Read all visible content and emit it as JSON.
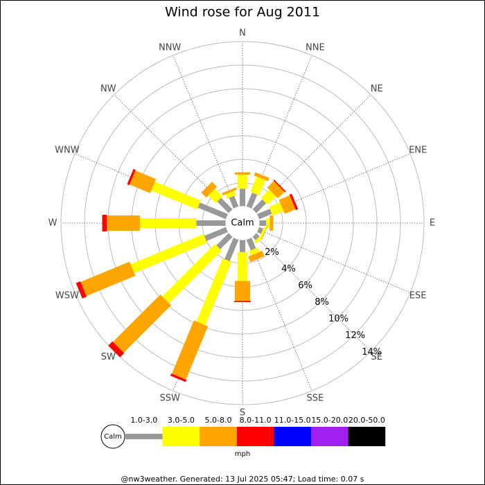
{
  "chart_data": {
    "type": "windrose",
    "title": "Wind rose for Aug 2011",
    "directions": [
      "N",
      "NNE",
      "NE",
      "ENE",
      "E",
      "ESE",
      "SE",
      "SSE",
      "S",
      "SSW",
      "SW",
      "WSW",
      "W",
      "WNW",
      "NW",
      "NNW"
    ],
    "calm_label": "Calm",
    "unit": "mph",
    "rlim": [
      0,
      14
    ],
    "rticks": [
      {
        "value": 2,
        "label": "2%"
      },
      {
        "value": 4,
        "label": "4%"
      },
      {
        "value": 6,
        "label": "6%"
      },
      {
        "value": 8,
        "label": "8%"
      },
      {
        "value": 10,
        "label": "10%"
      },
      {
        "value": 12,
        "label": "12%"
      },
      {
        "value": 14,
        "label": "14%"
      }
    ],
    "series": [
      {
        "name": "1.0-3.0",
        "color": "#999999",
        "values": [
          1.5,
          1.3,
          1.2,
          1.2,
          0.6,
          0.4,
          0.4,
          1.0,
          1.05,
          2.0,
          1.5,
          2.0,
          2.5,
          2.6,
          1.4,
          1.0
        ]
      },
      {
        "name": "3.0-5.0",
        "color": "#ffff00",
        "values": [
          1.2,
          1.4,
          1.0,
          1.0,
          0.3,
          0.2,
          0.25,
          0.4,
          2.45,
          5.8,
          6.3,
          6.7,
          4.8,
          4.2,
          0.9,
          0.4
        ]
      },
      {
        "name": "5.0-8.0",
        "color": "#ffa500",
        "values": [
          0.2,
          0.3,
          0.8,
          1.0,
          0.3,
          0.05,
          0,
          0.5,
          1.7,
          4.9,
          5.7,
          4.5,
          2.8,
          1.9,
          0.6,
          0.2
        ]
      },
      {
        "name": "8.0-11.0",
        "color": "#ff0000",
        "values": [
          0,
          0,
          0.1,
          0.2,
          0,
          0,
          0,
          0,
          0.1,
          0.2,
          0.5,
          0.4,
          0.4,
          0.2,
          0,
          0
        ]
      },
      {
        "name": "11.0-15.0",
        "color": "#0000ff",
        "values": [
          0,
          0,
          0,
          0,
          0,
          0,
          0,
          0,
          0,
          0,
          0,
          0,
          0,
          0,
          0,
          0
        ]
      },
      {
        "name": "15.0-20.0",
        "color": "#a020f0",
        "values": [
          0,
          0,
          0,
          0,
          0,
          0,
          0,
          0,
          0,
          0,
          0,
          0,
          0,
          0,
          0,
          0
        ]
      },
      {
        "name": "20.0-50.0",
        "color": "#000000",
        "values": [
          0,
          0,
          0,
          0,
          0,
          0,
          0,
          0,
          0,
          0,
          0,
          0,
          0,
          0,
          0,
          0
        ]
      }
    ],
    "footer": "@nw3weather. Generated: 13 Jul 2025 05:47; Load time: 0.07 s"
  }
}
